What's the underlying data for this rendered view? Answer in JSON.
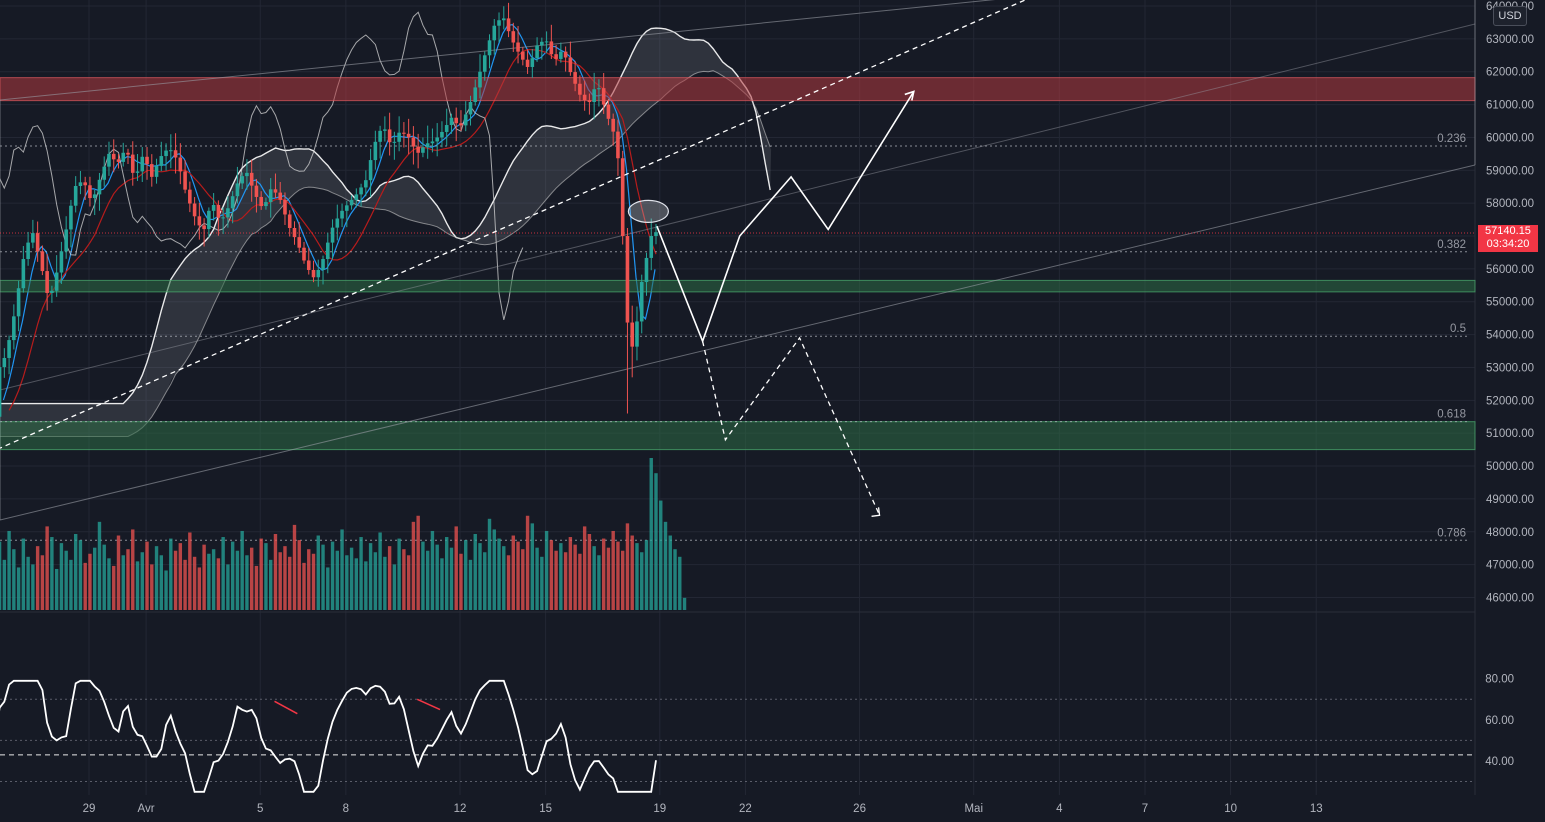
{
  "currency_badge": "USD",
  "price_tag": {
    "price": "57140.15",
    "countdown": "03:34:20"
  },
  "colors": {
    "background": "#161a25",
    "up": "#26a69a",
    "down": "#ef5350",
    "supply_zone": "#b23a3f",
    "demand_zone": "#2e6b46",
    "drawing": "#ffffff",
    "tenkan": "#2196f3",
    "kijun": "#b71c1c",
    "rsi_divergence": "#f23645",
    "price_tag": "#f23645"
  },
  "chart_data": {
    "type": "candlestick",
    "price_axis": {
      "labels": [
        "64000.00",
        "63000.00",
        "62000.00",
        "61000.00",
        "60000.00",
        "59000.00",
        "58000.00",
        "57000.00",
        "56000.00",
        "55000.00",
        "54000.00",
        "53000.00",
        "52000.00",
        "51000.00",
        "50000.00",
        "49000.00",
        "48000.00",
        "47000.00",
        "46000.00"
      ],
      "range": [
        45600,
        64200
      ]
    },
    "time_axis": {
      "labels": [
        "29",
        "Avr",
        "5",
        "8",
        "12",
        "15",
        "19",
        "22",
        "26",
        "Mai",
        "4",
        "7",
        "10",
        "13"
      ],
      "day_index": [
        0,
        2,
        6,
        9,
        13,
        16,
        20,
        23,
        27,
        31,
        34,
        37,
        40,
        43
      ]
    },
    "current_price": 57140.15,
    "fibonacci_levels": [
      {
        "ratio": "0.236",
        "price": 59740
      },
      {
        "ratio": "0.382",
        "price": 56520
      },
      {
        "ratio": "0.5",
        "price": 53950
      },
      {
        "ratio": "0.618",
        "price": 51350
      },
      {
        "ratio": "0.786",
        "price": 47740
      }
    ],
    "zones": [
      {
        "type": "supply",
        "from": 61120,
        "to": 61820
      },
      {
        "type": "demand",
        "from": 55300,
        "to": 55650
      },
      {
        "type": "demand",
        "from": 50500,
        "to": 51350
      }
    ],
    "price_path": [
      [
        -3.3,
        51500
      ],
      [
        -3.2,
        52900
      ],
      [
        -2.9,
        53400
      ],
      [
        -2.6,
        54700
      ],
      [
        -2.3,
        56300
      ],
      [
        -2.0,
        57200
      ],
      [
        -1.7,
        56200
      ],
      [
        -1.4,
        55000
      ],
      [
        -1.1,
        56000
      ],
      [
        -0.8,
        57200
      ],
      [
        -0.5,
        58500
      ],
      [
        -0.2,
        58700
      ],
      [
        0.1,
        58000
      ],
      [
        0.4,
        58800
      ],
      [
        0.7,
        59500
      ],
      [
        1.0,
        59200
      ],
      [
        1.3,
        59700
      ],
      [
        1.6,
        58700
      ],
      [
        1.9,
        59500
      ],
      [
        2.2,
        58800
      ],
      [
        2.5,
        59400
      ],
      [
        2.8,
        59700
      ],
      [
        3.1,
        59300
      ],
      [
        3.4,
        58300
      ],
      [
        3.7,
        57600
      ],
      [
        4.0,
        57100
      ],
      [
        4.3,
        58100
      ],
      [
        4.6,
        57400
      ],
      [
        4.9,
        57900
      ],
      [
        5.2,
        58600
      ],
      [
        5.5,
        59000
      ],
      [
        5.8,
        58300
      ],
      [
        6.1,
        57800
      ],
      [
        6.4,
        58500
      ],
      [
        6.7,
        58100
      ],
      [
        7.0,
        57300
      ],
      [
        7.3,
        56800
      ],
      [
        7.6,
        56100
      ],
      [
        7.9,
        55700
      ],
      [
        8.2,
        56300
      ],
      [
        8.5,
        57200
      ],
      [
        8.8,
        57700
      ],
      [
        9.1,
        58000
      ],
      [
        9.4,
        58300
      ],
      [
        9.7,
        58700
      ],
      [
        10.0,
        59800
      ],
      [
        10.3,
        60400
      ],
      [
        10.6,
        59700
      ],
      [
        10.9,
        60200
      ],
      [
        11.2,
        60000
      ],
      [
        11.5,
        59500
      ],
      [
        11.8,
        59800
      ],
      [
        12.1,
        59900
      ],
      [
        12.4,
        60200
      ],
      [
        12.7,
        60600
      ],
      [
        13.0,
        60300
      ],
      [
        13.3,
        60900
      ],
      [
        13.6,
        61700
      ],
      [
        13.9,
        62600
      ],
      [
        14.2,
        63400
      ],
      [
        14.5,
        63700
      ],
      [
        14.8,
        63000
      ],
      [
        15.1,
        62500
      ],
      [
        15.4,
        62100
      ],
      [
        15.7,
        62800
      ],
      [
        16.0,
        63000
      ],
      [
        16.3,
        62300
      ],
      [
        16.6,
        62700
      ],
      [
        16.9,
        61900
      ],
      [
        17.2,
        61300
      ],
      [
        17.5,
        61000
      ],
      [
        17.8,
        61700
      ],
      [
        18.1,
        60800
      ],
      [
        18.4,
        60100
      ],
      [
        18.6,
        59000
      ],
      [
        18.75,
        56000
      ],
      [
        18.9,
        53900
      ],
      [
        19.1,
        53500
      ],
      [
        19.3,
        55300
      ],
      [
        19.5,
        56200
      ],
      [
        19.7,
        57000
      ],
      [
        19.9,
        57140
      ]
    ],
    "drawings": {
      "scenario_up": [
        [
          19.9,
          57300
        ],
        [
          21.5,
          53800
        ],
        [
          22.8,
          57000
        ],
        [
          24.6,
          58800
        ],
        [
          25.9,
          57200
        ],
        [
          28.9,
          61400
        ]
      ],
      "scenario_down": [
        [
          21.5,
          53800
        ],
        [
          22.3,
          50800
        ],
        [
          24.9,
          53900
        ],
        [
          27.7,
          48500
        ]
      ],
      "channel_dashed": [
        [
          -3.5,
          50400
        ],
        [
          33.9,
          64600
        ]
      ]
    },
    "volume": {
      "range": [
        0,
        100
      ],
      "values": [
        38,
        45,
        33,
        52,
        40,
        28,
        47,
        35,
        30,
        42,
        36,
        55,
        48,
        27,
        44,
        39,
        33,
        50,
        46,
        31,
        37,
        41,
        58,
        43,
        34,
        29,
        49,
        36,
        40,
        53,
        32,
        38,
        45,
        30,
        42,
        36,
        26,
        47,
        39,
        44,
        33,
        51,
        35,
        28,
        43,
        37,
        40,
        34,
        48,
        30,
        45,
        39,
        52,
        36,
        41,
        29,
        47,
        44,
        33,
        50,
        38,
        42,
        35,
        56,
        46,
        31,
        40,
        37,
        49,
        43,
        28,
        45,
        39,
        53,
        36,
        41,
        34,
        48,
        32,
        44,
        38,
        51,
        35,
        42,
        30,
        47,
        40,
        36,
        58,
        62,
        45,
        39,
        52,
        43,
        34,
        48,
        41,
        55,
        37,
        46,
        33,
        50,
        44,
        38,
        60,
        53,
        47,
        42,
        36,
        49,
        45,
        40,
        62,
        57,
        41,
        35,
        52,
        46,
        39,
        44,
        38,
        48,
        43,
        37,
        55,
        50,
        42,
        36,
        47,
        41,
        52,
        45,
        39,
        57,
        49,
        44,
        38,
        46,
        100,
        90,
        72,
        58,
        49,
        40,
        35,
        8
      ]
    },
    "rsi": {
      "type": "line",
      "range": [
        22,
        93
      ],
      "levels": [
        70,
        50,
        43,
        30
      ],
      "divergences": [
        [
          [
            6.5,
            69
          ],
          [
            7.3,
            63
          ]
        ],
        [
          [
            11.5,
            70
          ],
          [
            12.3,
            65
          ]
        ]
      ]
    }
  }
}
